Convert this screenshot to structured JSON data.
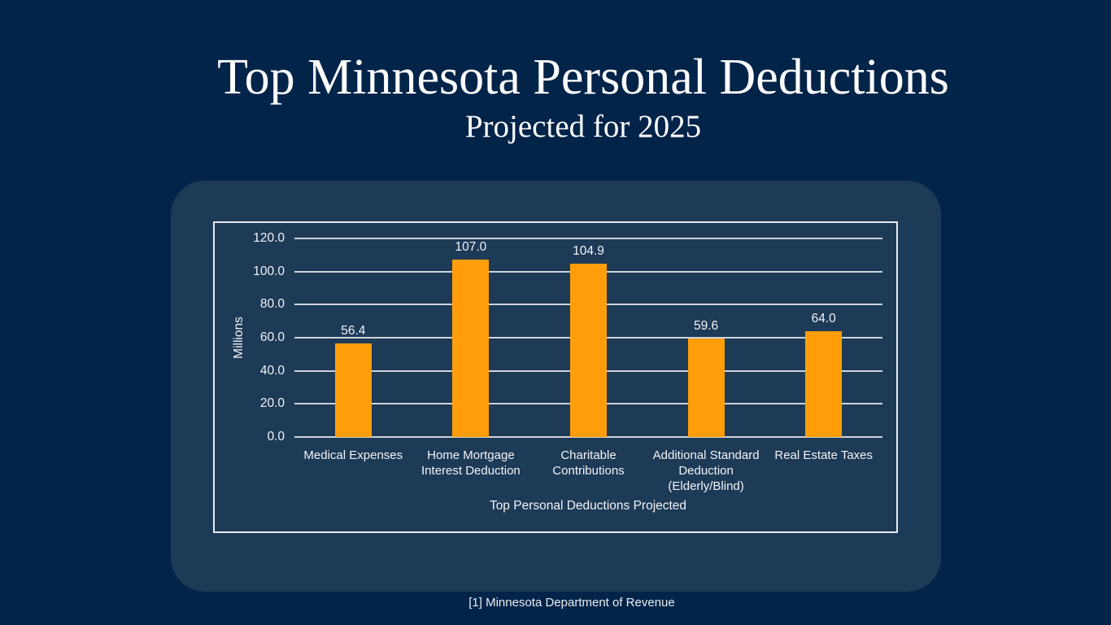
{
  "header": {
    "title": "Top Minnesota Personal Deductions",
    "subtitle": "Projected for 2025"
  },
  "footnote": {
    "text": "[1] Minnesota Department of Revenue"
  },
  "colors": {
    "background": "#032449",
    "panel": "#1d3a56",
    "bar": "#ff9e0a",
    "gridline": "#ccd4db",
    "chart_border": "#e7eaee",
    "text": "#f2f4f6"
  },
  "chart_data": {
    "type": "bar",
    "title": "",
    "categories": [
      "Medical Expenses",
      "Home Mortgage\nInterest Deduction",
      "Charitable\nContributions",
      "Additional Standard\nDeduction\n(Elderly/Blind)",
      "Real Estate Taxes"
    ],
    "values": [
      56.4,
      107.0,
      104.9,
      59.6,
      64.0
    ],
    "value_labels": [
      "56.4",
      "107.0",
      "104.9",
      "59.6",
      "64.0"
    ],
    "xlabel": "Top Personal Deductions Projected",
    "ylabel": "Millions",
    "ylim": [
      0,
      120
    ],
    "ytick_step": 20,
    "ytick_labels": [
      "0.0",
      "20.0",
      "40.0",
      "60.0",
      "80.0",
      "100.0",
      "120.0"
    ],
    "grid": true,
    "legend": false,
    "bar_color": "#ff9e0a"
  }
}
